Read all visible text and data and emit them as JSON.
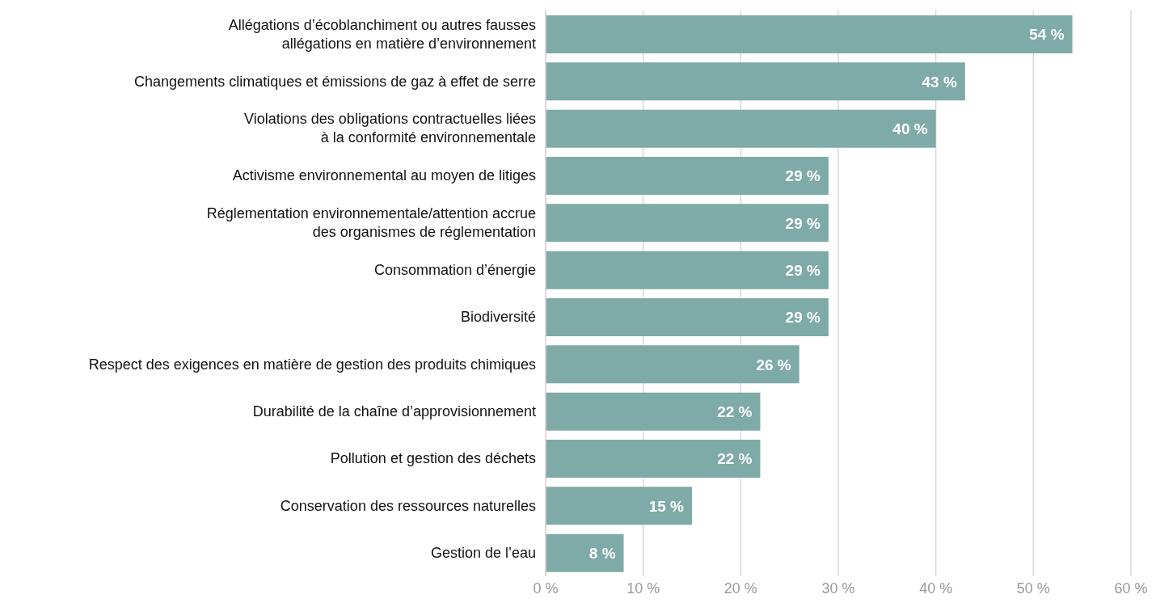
{
  "chart_data": {
    "type": "bar",
    "orientation": "horizontal",
    "categories": [
      "Allégations d’écoblanchiment ou autres fausses\nallégations en matière d’environnement",
      "Changements climatiques et émissions de gaz à effet de serre",
      "Violations des obligations contractuelles liées\nà la conformité environnementale",
      "Activisme environnemental au moyen de litiges",
      "Réglementation environnementale/attention accrue\ndes organismes de réglementation",
      "Consommation d’énergie",
      "Biodiversité",
      "Respect des exigences en matière de gestion des produits chimiques",
      "Durabilité de la chaîne d’approvisionnement",
      "Pollution et gestion des déchets",
      "Conservation des ressources naturelles",
      "Gestion de l’eau"
    ],
    "values": [
      54,
      43,
      40,
      29,
      29,
      29,
      29,
      26,
      22,
      22,
      15,
      8
    ],
    "value_labels": [
      "54 %",
      "43 %",
      "40 %",
      "29 %",
      "29 %",
      "29 %",
      "29 %",
      "26 %",
      "22 %",
      "22 %",
      "15 %",
      "8 %"
    ],
    "color": "#7eaaa8",
    "xlim": [
      0,
      60
    ],
    "xticks": [
      {
        "value": 0,
        "label": "0 %"
      },
      {
        "value": 10,
        "label": "10 %"
      },
      {
        "value": 20,
        "label": "20 %"
      },
      {
        "value": 30,
        "label": "30 %"
      },
      {
        "value": 40,
        "label": "40 %"
      },
      {
        "value": 50,
        "label": "50 %"
      },
      {
        "value": 60,
        "label": "60 %"
      }
    ],
    "grid": "x"
  }
}
